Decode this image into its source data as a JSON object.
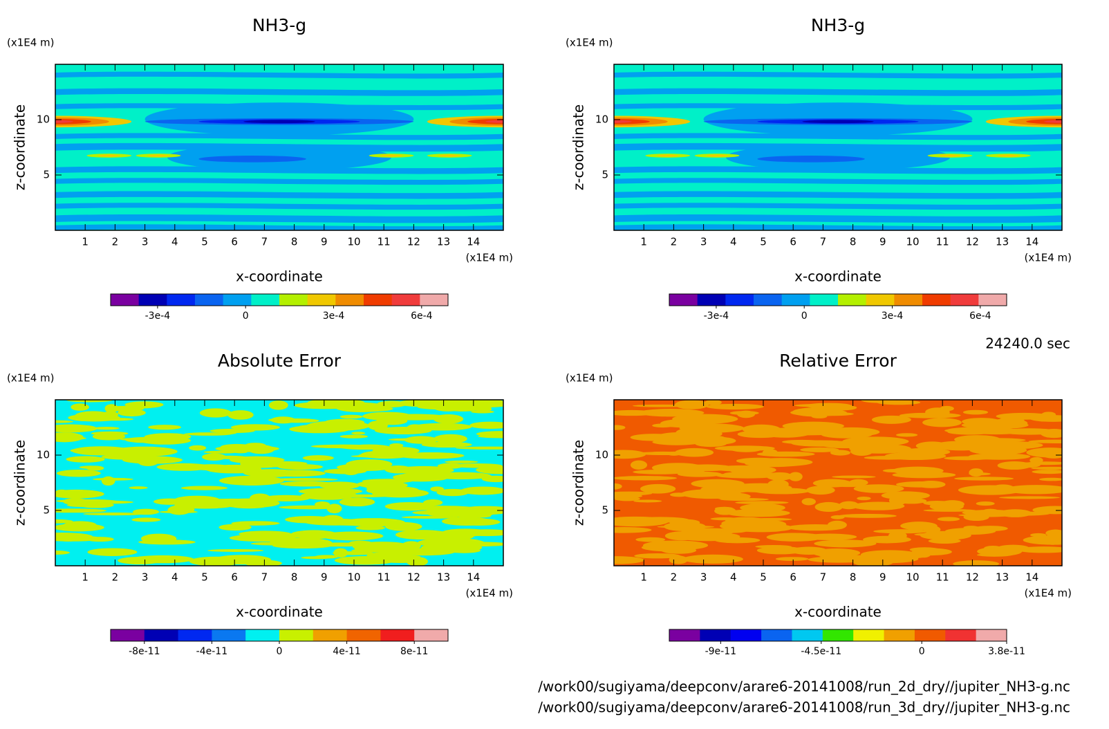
{
  "chart_data": [
    {
      "type": "contour",
      "title": "NH3-g",
      "xlabel": "x-coordinate",
      "ylabel": "z-coordinate",
      "x_unit": "(x1E4 m)",
      "y_unit": "(x1E4 m)",
      "xlim": [
        0,
        15
      ],
      "ylim": [
        0,
        15
      ],
      "xticks": [
        1,
        2,
        3,
        4,
        5,
        6,
        7,
        8,
        9,
        10,
        11,
        12,
        13,
        14
      ],
      "yticks": [
        5,
        10
      ],
      "colorbar": {
        "colors": [
          "#7a00a0",
          "#0000b4",
          "#0028f0",
          "#0a64f0",
          "#00a0f0",
          "#00f0c8",
          "#b4f000",
          "#f0c800",
          "#f08c00",
          "#f03c00",
          "#f03c3c",
          "#f0aaaa"
        ],
        "clim": [
          -0.00046,
          0.00069
        ],
        "ticks": [
          {
            "value": -0.0003,
            "label": "-3e-4"
          },
          0,
          {
            "value": 0.0003,
            "label": "3e-4"
          },
          {
            "value": 0.0006,
            "label": "6e-4"
          }
        ]
      }
    },
    {
      "type": "contour",
      "title": "NH3-g",
      "xlabel": "x-coordinate",
      "ylabel": "z-coordinate",
      "x_unit": "(x1E4 m)",
      "y_unit": "(x1E4 m)",
      "xlim": [
        0,
        15
      ],
      "ylim": [
        0,
        15
      ],
      "xticks": [
        1,
        2,
        3,
        4,
        5,
        6,
        7,
        8,
        9,
        10,
        11,
        12,
        13,
        14
      ],
      "yticks": [
        5,
        10
      ],
      "colorbar": {
        "colors": [
          "#7a00a0",
          "#0000b4",
          "#0028f0",
          "#0a64f0",
          "#00a0f0",
          "#00f0c8",
          "#b4f000",
          "#f0c800",
          "#f08c00",
          "#f03c00",
          "#f03c3c",
          "#f0aaaa"
        ],
        "clim": [
          -0.00046,
          0.00069
        ],
        "ticks": [
          {
            "value": -0.0003,
            "label": "-3e-4"
          },
          0,
          {
            "value": 0.0003,
            "label": "3e-4"
          },
          {
            "value": 0.0006,
            "label": "6e-4"
          }
        ]
      }
    },
    {
      "type": "contour",
      "title": "Absolute Error",
      "xlabel": "x-coordinate",
      "ylabel": "z-coordinate",
      "x_unit": "(x1E4 m)",
      "y_unit": "(x1E4 m)",
      "xlim": [
        0,
        15
      ],
      "ylim": [
        0,
        15
      ],
      "xticks": [
        1,
        2,
        3,
        4,
        5,
        6,
        7,
        8,
        9,
        10,
        11,
        12,
        13,
        14
      ],
      "yticks": [
        5,
        10
      ],
      "colorbar": {
        "colors": [
          "#7a00a0",
          "#0000b4",
          "#0028f0",
          "#0a78f0",
          "#00f0f0",
          "#c8f000",
          "#f0a000",
          "#f06400",
          "#f01e1e",
          "#f0aaaa"
        ],
        "clim": [
          -1e-10,
          1e-10
        ],
        "ticks": [
          {
            "value": -8e-11,
            "label": "-8e-11"
          },
          {
            "value": -4e-11,
            "label": "-4e-11"
          },
          0,
          {
            "value": 4e-11,
            "label": "4e-11"
          },
          {
            "value": 8e-11,
            "label": "8e-11"
          }
        ]
      }
    },
    {
      "type": "contour",
      "title": "Relative Error",
      "xlabel": "x-coordinate",
      "ylabel": "z-coordinate",
      "x_unit": "(x1E4 m)",
      "y_unit": "(x1E4 m)",
      "xlim": [
        0,
        15
      ],
      "ylim": [
        0,
        15
      ],
      "xticks": [
        1,
        2,
        3,
        4,
        5,
        6,
        7,
        8,
        9,
        10,
        11,
        12,
        13,
        14
      ],
      "yticks": [
        5,
        10
      ],
      "colorbar": {
        "colors": [
          "#7a00a0",
          "#0000b4",
          "#0000f0",
          "#0a64f0",
          "#00c8f0",
          "#32e600",
          "#f0f000",
          "#f0a000",
          "#f05a00",
          "#f03232",
          "#f0aaaa"
        ],
        "clim": [
          -1.13e-10,
          3.8e-11
        ],
        "ticks": [
          {
            "value": -9e-11,
            "label": "-9e-11"
          },
          {
            "value": -4.5e-11,
            "label": "-4.5e-11"
          },
          0,
          {
            "value": 3.8e-11,
            "label": "3.8e-11"
          }
        ]
      }
    }
  ],
  "time_label": "24240.0 sec",
  "files": [
    "/work00/sugiyama/deepconv/arare6-20141008/run_2d_dry//jupiter_NH3-g.nc",
    "/work00/sugiyama/deepconv/arare6-20141008/run_3d_dry//jupiter_NH3-g.nc"
  ]
}
